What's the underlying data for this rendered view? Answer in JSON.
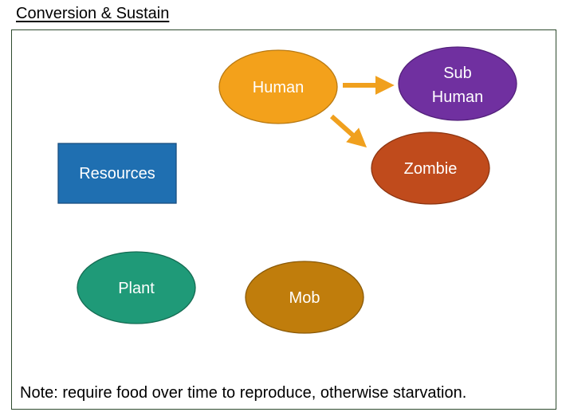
{
  "title": "Conversion & Sustain",
  "nodes": {
    "human": "Human",
    "sub_human_line1": "Sub",
    "sub_human_line2": "Human",
    "zombie": "Zombie",
    "resources": "Resources",
    "plant": "Plant",
    "mob": "Mob"
  },
  "edges": [
    {
      "from": "Human",
      "to": "Sub Human"
    },
    {
      "from": "Human",
      "to": "Zombie"
    }
  ],
  "colors": {
    "human": "#f3a11b",
    "sub_human": "#7030a0",
    "zombie": "#c04b1c",
    "resources": "#1f6fb1",
    "plant": "#1f9a78",
    "mob": "#c07d0c",
    "arrow": "#f0a01e"
  },
  "note": "Note: require food over time to reproduce, otherwise starvation."
}
